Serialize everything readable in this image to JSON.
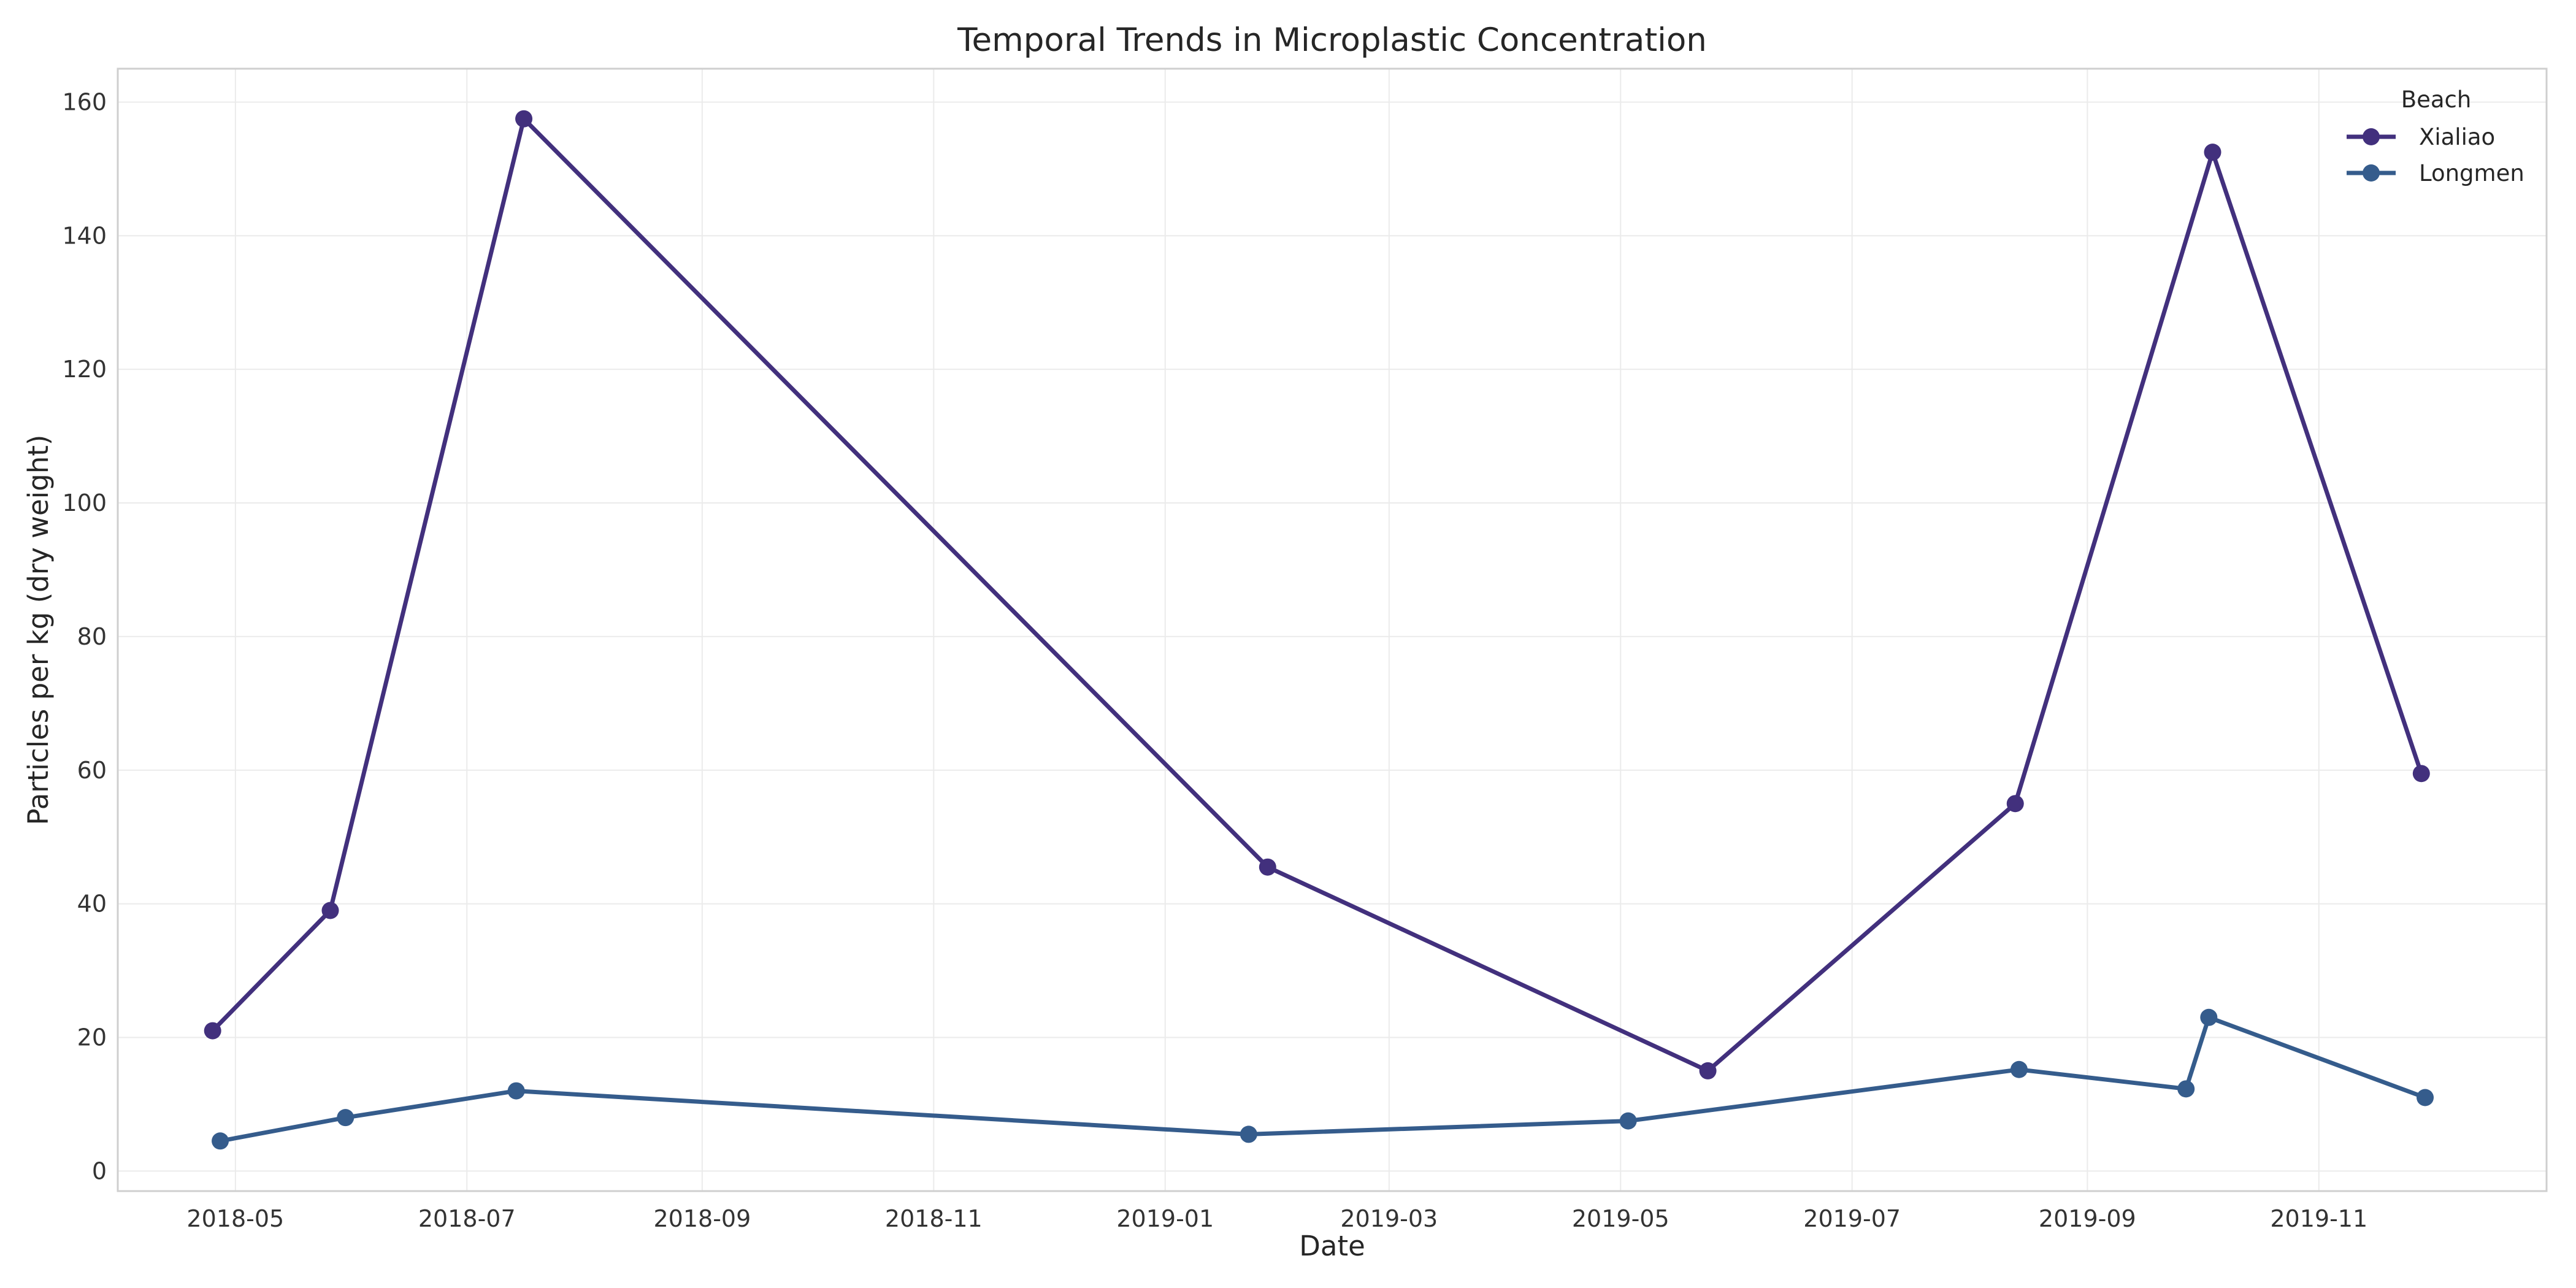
{
  "chart_data": {
    "type": "line",
    "title": "Temporal Trends in Microplastic Concentration",
    "xlabel": "Date",
    "ylabel": "Particles per kg (dry weight)",
    "ylim": [
      -3,
      165
    ],
    "xlim": [
      "2018-03-31",
      "2019-12-31"
    ],
    "y_ticks": [
      0,
      20,
      40,
      60,
      80,
      100,
      120,
      140,
      160
    ],
    "x_ticks": [
      "2018-05",
      "2018-07",
      "2018-09",
      "2018-11",
      "2019-01",
      "2019-03",
      "2019-05",
      "2019-07",
      "2019-09",
      "2019-11"
    ],
    "grid": true,
    "legend": {
      "title": "Beach",
      "position": "top-right"
    },
    "series": [
      {
        "name": "Xialiao",
        "color": "#42307d",
        "points": [
          {
            "x": "2018-04-25",
            "y": 21
          },
          {
            "x": "2018-05-26",
            "y": 39
          },
          {
            "x": "2018-07-16",
            "y": 157.5
          },
          {
            "x": "2019-01-28",
            "y": 45.5
          },
          {
            "x": "2019-05-24",
            "y": 15
          },
          {
            "x": "2019-08-13",
            "y": 55
          },
          {
            "x": "2019-10-04",
            "y": 152.5
          },
          {
            "x": "2019-11-28",
            "y": 59.5
          }
        ]
      },
      {
        "name": "Longmen",
        "color": "#355c8c",
        "points": [
          {
            "x": "2018-04-27",
            "y": 4.5
          },
          {
            "x": "2018-05-30",
            "y": 8
          },
          {
            "x": "2018-07-14",
            "y": 12
          },
          {
            "x": "2019-01-23",
            "y": 5.5
          },
          {
            "x": "2019-05-03",
            "y": 7.5
          },
          {
            "x": "2019-08-14",
            "y": 15.2
          },
          {
            "x": "2019-09-27",
            "y": 12.3
          },
          {
            "x": "2019-10-03",
            "y": 23
          },
          {
            "x": "2019-11-29",
            "y": 11
          }
        ]
      }
    ]
  }
}
